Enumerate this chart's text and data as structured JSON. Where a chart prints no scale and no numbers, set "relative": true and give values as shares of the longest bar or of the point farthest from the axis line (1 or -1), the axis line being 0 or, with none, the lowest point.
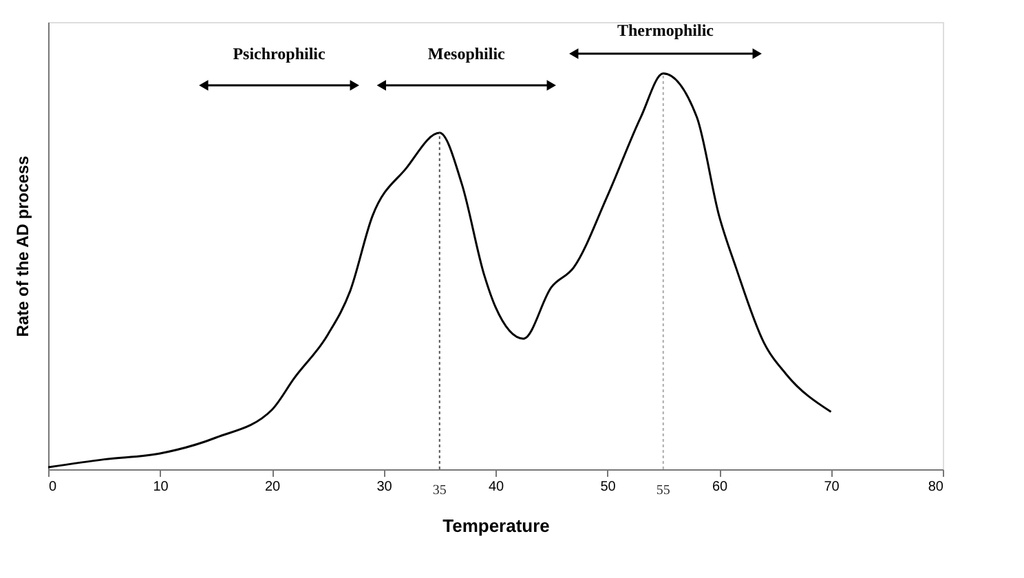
{
  "chart_data": {
    "type": "line",
    "relative": true,
    "xlabel": "Temperature",
    "ylabel": "Rate of the AD process",
    "xlim": [
      0,
      80
    ],
    "xticks": [
      0,
      10,
      20,
      30,
      40,
      50,
      60,
      70,
      80
    ],
    "x": [
      0,
      5,
      10,
      15,
      20,
      22,
      25,
      27,
      29,
      32,
      35,
      37,
      39,
      40,
      42.5,
      45,
      47,
      50,
      53,
      55,
      58,
      60,
      61.5,
      64,
      66,
      70
    ],
    "series": [
      {
        "color": "#000000",
        "values": [
          0.005,
          0.025,
          0.04,
          0.08,
          0.15,
          0.23,
          0.34,
          0.45,
          0.64,
          0.76,
          0.85,
          0.72,
          0.49,
          0.41,
          0.33,
          0.46,
          0.51,
          0.69,
          0.89,
          1.0,
          0.89,
          0.64,
          0.51,
          0.32,
          0.24,
          0.145
        ]
      }
    ],
    "ref_lines": [
      {
        "axis": "x",
        "value": 35,
        "label": "35",
        "line_style": "dotted",
        "color": "#555555"
      },
      {
        "axis": "x",
        "value": 55,
        "label": "55",
        "line_style": "dotted",
        "color": "#aaaaaa"
      }
    ],
    "annotations": [
      "Psichrophilic",
      "Mesophilic",
      "Thermophilic"
    ],
    "grid": false,
    "marker": "none",
    "line_style": "solid"
  }
}
